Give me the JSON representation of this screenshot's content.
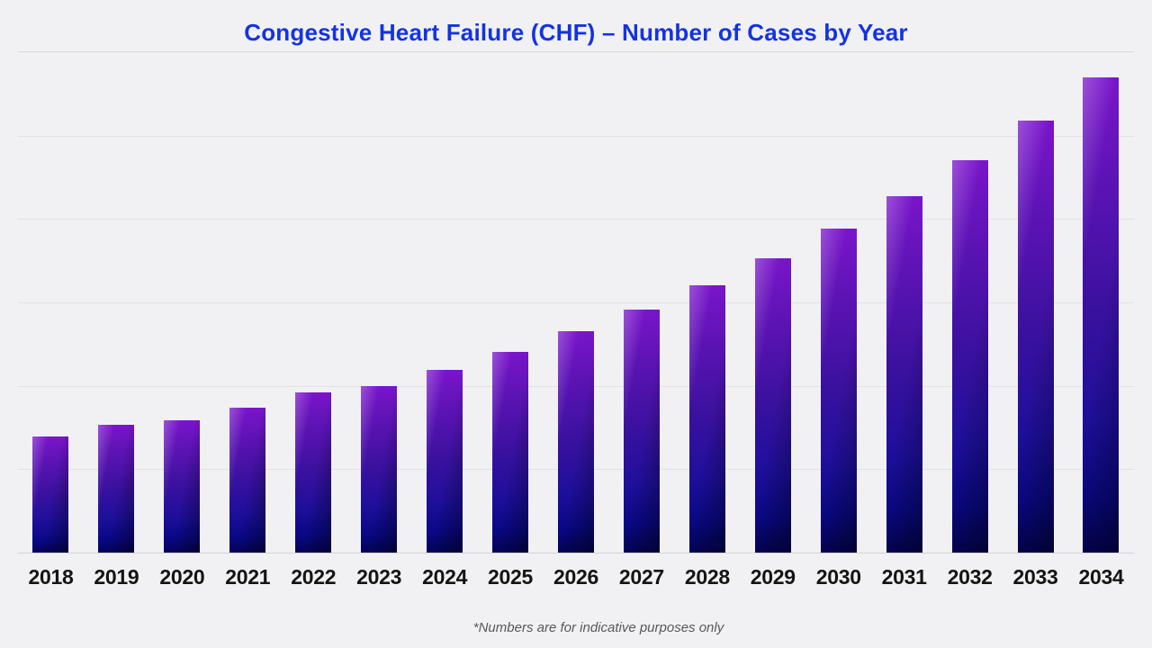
{
  "page": {
    "background_color": "#f1f1f3",
    "accent_blue": "#1433e0"
  },
  "header": {
    "title": "Congestive Heart Failure (CHF) – Number of Cases by Year",
    "title_color": "#1433e0"
  },
  "footnote": "*Numbers are for indicative purposes only",
  "chart_data": {
    "type": "bar",
    "title": "Congestive Heart Failure (CHF) – Number of Cases by Year",
    "categories": [
      "2018",
      "2019",
      "2020",
      "2021",
      "2022",
      "2023",
      "2024",
      "2025",
      "2026",
      "2027",
      "2028",
      "2029",
      "2030",
      "2031",
      "2032",
      "2033",
      "2034"
    ],
    "values": [
      1.39,
      1.53,
      1.59,
      1.74,
      1.92,
      2.0,
      2.19,
      2.41,
      2.65,
      2.91,
      3.2,
      3.53,
      3.88,
      4.27,
      4.7,
      5.18,
      5.7
    ],
    "value_scale_note": "y-axis has no tick labels; values estimated in gridline units (1.0 = one gridline interval)",
    "xlabel": "",
    "ylabel": "",
    "ylim": [
      0,
      6
    ],
    "grid": "horizontal gridlines on, unlabeled",
    "legend": "none",
    "bar_gradient_top": "#7a15ca",
    "bar_gradient_bottom": "#030355",
    "annotation": "*Numbers are for indicative purposes only"
  }
}
